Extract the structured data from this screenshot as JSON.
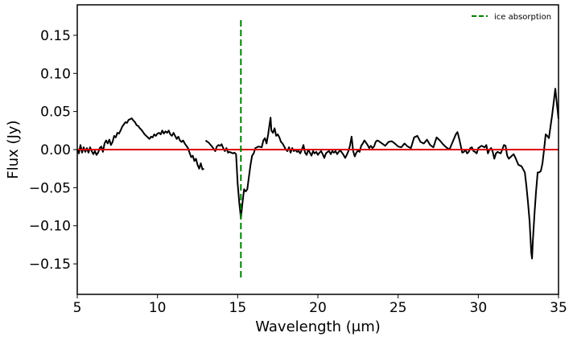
{
  "chart_data": {
    "type": "line",
    "title": "",
    "xlabel": "Wavelength (μm)",
    "ylabel": "Flux (Jy)",
    "xlim": [
      5,
      35
    ],
    "ylim": [
      -0.19,
      0.19
    ],
    "xticks": [
      5,
      10,
      15,
      20,
      25,
      30,
      35
    ],
    "xtick_labels": [
      "5",
      "10",
      "15",
      "20",
      "25",
      "30",
      "35"
    ],
    "yticks": [
      -0.15,
      -0.1,
      -0.05,
      0.0,
      0.05,
      0.1,
      0.15
    ],
    "ytick_labels": [
      "−0.15",
      "−0.10",
      "−0.05",
      "0.00",
      "0.05",
      "0.10",
      "0.15"
    ],
    "grid": false,
    "legend": {
      "position": "top-right",
      "entries": [
        {
          "label": "ice absorption",
          "color": "#008000",
          "style": "dashed"
        }
      ]
    },
    "series": [
      {
        "color": "#000000",
        "segments": [
          [
            [
              5.0,
              0.0
            ],
            [
              5.1,
              -0.005
            ],
            [
              5.2,
              0.006
            ],
            [
              5.3,
              -0.004
            ],
            [
              5.4,
              0.003
            ],
            [
              5.5,
              -0.003
            ],
            [
              5.6,
              0.002
            ],
            [
              5.7,
              -0.004
            ],
            [
              5.8,
              0.003
            ],
            [
              5.9,
              -0.002
            ],
            [
              6.0,
              -0.006
            ],
            [
              6.1,
              -0.002
            ],
            [
              6.2,
              -0.007
            ],
            [
              6.3,
              -0.004
            ],
            [
              6.4,
              0.002
            ],
            [
              6.5,
              0.004
            ],
            [
              6.6,
              -0.003
            ],
            [
              6.7,
              0.008
            ],
            [
              6.8,
              0.012
            ],
            [
              6.9,
              0.008
            ],
            [
              7.0,
              0.013
            ],
            [
              7.1,
              0.006
            ],
            [
              7.2,
              0.01
            ],
            [
              7.3,
              0.018
            ],
            [
              7.4,
              0.016
            ],
            [
              7.5,
              0.022
            ],
            [
              7.6,
              0.021
            ],
            [
              7.7,
              0.025
            ],
            [
              7.8,
              0.03
            ],
            [
              7.9,
              0.033
            ],
            [
              8.0,
              0.036
            ],
            [
              8.1,
              0.035
            ],
            [
              8.2,
              0.039
            ],
            [
              8.3,
              0.04
            ],
            [
              8.4,
              0.041
            ],
            [
              8.5,
              0.038
            ],
            [
              8.6,
              0.036
            ],
            [
              8.7,
              0.032
            ],
            [
              8.8,
              0.031
            ],
            [
              8.9,
              0.028
            ],
            [
              9.0,
              0.026
            ],
            [
              9.1,
              0.023
            ],
            [
              9.2,
              0.02
            ],
            [
              9.3,
              0.018
            ],
            [
              9.4,
              0.016
            ],
            [
              9.5,
              0.014
            ],
            [
              9.6,
              0.017
            ],
            [
              9.7,
              0.016
            ],
            [
              9.8,
              0.02
            ],
            [
              9.9,
              0.018
            ],
            [
              10.0,
              0.021
            ],
            [
              10.1,
              0.022
            ],
            [
              10.2,
              0.02
            ],
            [
              10.3,
              0.025
            ],
            [
              10.4,
              0.021
            ],
            [
              10.5,
              0.024
            ],
            [
              10.6,
              0.022
            ],
            [
              10.7,
              0.025
            ],
            [
              10.8,
              0.02
            ],
            [
              10.9,
              0.018
            ],
            [
              11.0,
              0.022
            ],
            [
              11.1,
              0.018
            ],
            [
              11.2,
              0.014
            ],
            [
              11.3,
              0.017
            ],
            [
              11.4,
              0.012
            ],
            [
              11.5,
              0.01
            ],
            [
              11.6,
              0.012
            ],
            [
              11.7,
              0.008
            ],
            [
              11.8,
              0.005
            ],
            [
              11.9,
              0.002
            ],
            [
              12.0,
              -0.004
            ],
            [
              12.1,
              -0.01
            ],
            [
              12.2,
              -0.008
            ],
            [
              12.3,
              -0.015
            ],
            [
              12.4,
              -0.012
            ],
            [
              12.5,
              -0.02
            ],
            [
              12.6,
              -0.025
            ],
            [
              12.7,
              -0.018
            ],
            [
              12.8,
              -0.026
            ],
            [
              12.9,
              -0.025
            ]
          ],
          [
            [
              13.0,
              0.012
            ],
            [
              13.2,
              0.009
            ],
            [
              13.4,
              0.004
            ],
            [
              13.6,
              -0.002
            ],
            [
              13.7,
              0.004
            ],
            [
              13.8,
              0.006
            ],
            [
              13.9,
              0.005
            ],
            [
              14.0,
              0.007
            ],
            [
              14.1,
              0.002
            ],
            [
              14.2,
              -0.002
            ],
            [
              14.3,
              0.002
            ],
            [
              14.4,
              -0.004
            ],
            [
              14.5,
              -0.003
            ],
            [
              14.6,
              -0.004
            ],
            [
              14.7,
              -0.005
            ],
            [
              14.8,
              -0.004
            ],
            [
              14.9,
              -0.006
            ],
            [
              15.0,
              -0.045
            ],
            [
              15.1,
              -0.07
            ],
            [
              15.2,
              -0.09
            ],
            [
              15.3,
              -0.07
            ],
            [
              15.4,
              -0.052
            ],
            [
              15.5,
              -0.055
            ],
            [
              15.6,
              -0.052
            ],
            [
              15.8,
              -0.02
            ],
            [
              15.9,
              -0.008
            ],
            [
              16.0,
              -0.005
            ],
            [
              16.1,
              0.002
            ],
            [
              16.3,
              0.004
            ],
            [
              16.5,
              0.003
            ],
            [
              16.6,
              0.012
            ],
            [
              16.7,
              0.015
            ],
            [
              16.8,
              0.008
            ],
            [
              16.9,
              0.02
            ],
            [
              17.0,
              0.035
            ],
            [
              17.05,
              0.042
            ],
            [
              17.1,
              0.025
            ],
            [
              17.2,
              0.022
            ],
            [
              17.3,
              0.028
            ],
            [
              17.4,
              0.018
            ],
            [
              17.5,
              0.02
            ],
            [
              17.6,
              0.016
            ],
            [
              17.7,
              0.01
            ],
            [
              17.8,
              0.008
            ],
            [
              17.9,
              0.004
            ],
            [
              18.0,
              0.0
            ],
            [
              18.1,
              -0.002
            ],
            [
              18.2,
              0.003
            ],
            [
              18.3,
              -0.004
            ],
            [
              18.4,
              0.002
            ],
            [
              18.5,
              -0.002
            ],
            [
              18.6,
              0.0
            ],
            [
              18.7,
              -0.003
            ],
            [
              18.8,
              -0.002
            ],
            [
              18.9,
              -0.005
            ],
            [
              19.0,
              0.0
            ],
            [
              19.1,
              0.006
            ],
            [
              19.2,
              -0.004
            ],
            [
              19.3,
              -0.007
            ],
            [
              19.4,
              0.0
            ],
            [
              19.5,
              -0.004
            ],
            [
              19.6,
              -0.008
            ],
            [
              19.7,
              -0.002
            ],
            [
              19.8,
              -0.005
            ],
            [
              19.9,
              -0.003
            ],
            [
              20.0,
              -0.007
            ],
            [
              20.1,
              -0.004
            ],
            [
              20.2,
              -0.002
            ],
            [
              20.3,
              -0.006
            ],
            [
              20.4,
              -0.011
            ],
            [
              20.5,
              -0.005
            ],
            [
              20.6,
              -0.003
            ],
            [
              20.7,
              -0.002
            ],
            [
              20.8,
              -0.006
            ],
            [
              20.9,
              -0.002
            ],
            [
              21.0,
              -0.004
            ],
            [
              21.1,
              -0.002
            ],
            [
              21.2,
              -0.006
            ],
            [
              21.3,
              -0.003
            ],
            [
              21.4,
              -0.001
            ],
            [
              21.5,
              -0.004
            ],
            [
              21.6,
              -0.007
            ],
            [
              21.7,
              -0.011
            ],
            [
              21.8,
              -0.007
            ],
            [
              21.9,
              -0.002
            ],
            [
              22.0,
              0.005
            ],
            [
              22.1,
              0.017
            ],
            [
              22.2,
              -0.002
            ],
            [
              22.3,
              -0.009
            ],
            [
              22.4,
              -0.004
            ],
            [
              22.5,
              -0.001
            ],
            [
              22.6,
              -0.003
            ],
            [
              22.7,
              0.005
            ],
            [
              22.8,
              0.008
            ],
            [
              22.9,
              0.012
            ],
            [
              23.0,
              0.009
            ],
            [
              23.1,
              0.006
            ],
            [
              23.2,
              0.002
            ],
            [
              23.3,
              0.005
            ],
            [
              23.4,
              0.002
            ],
            [
              23.5,
              0.004
            ],
            [
              23.6,
              0.01
            ],
            [
              23.7,
              0.012
            ],
            [
              23.8,
              0.011
            ],
            [
              24.0,
              0.008
            ],
            [
              24.2,
              0.005
            ],
            [
              24.4,
              0.01
            ],
            [
              24.6,
              0.011
            ],
            [
              24.8,
              0.008
            ],
            [
              25.0,
              0.004
            ],
            [
              25.2,
              0.003
            ],
            [
              25.4,
              0.008
            ],
            [
              25.6,
              0.004
            ],
            [
              25.8,
              0.002
            ],
            [
              26.0,
              0.016
            ],
            [
              26.2,
              0.018
            ],
            [
              26.4,
              0.01
            ],
            [
              26.6,
              0.008
            ],
            [
              26.8,
              0.013
            ],
            [
              27.0,
              0.006
            ],
            [
              27.2,
              0.003
            ],
            [
              27.4,
              0.016
            ],
            [
              27.6,
              0.012
            ],
            [
              27.8,
              0.007
            ],
            [
              28.0,
              0.003
            ],
            [
              28.2,
              0.0
            ],
            [
              28.4,
              0.01
            ],
            [
              28.6,
              0.02
            ],
            [
              28.7,
              0.023
            ],
            [
              28.8,
              0.015
            ],
            [
              29.0,
              -0.004
            ],
            [
              29.1,
              -0.003
            ],
            [
              29.2,
              0.0
            ],
            [
              29.3,
              -0.005
            ],
            [
              29.4,
              -0.003
            ],
            [
              29.5,
              0.002
            ],
            [
              29.6,
              0.003
            ],
            [
              29.7,
              -0.002
            ],
            [
              29.8,
              -0.003
            ],
            [
              29.9,
              -0.005
            ],
            [
              30.0,
              0.002
            ],
            [
              30.2,
              0.005
            ],
            [
              30.4,
              0.003
            ],
            [
              30.5,
              0.006
            ],
            [
              30.6,
              -0.005
            ],
            [
              30.7,
              0.0
            ],
            [
              30.8,
              0.002
            ],
            [
              30.9,
              -0.003
            ],
            [
              31.0,
              -0.012
            ],
            [
              31.1,
              -0.005
            ],
            [
              31.2,
              -0.003
            ],
            [
              31.4,
              -0.005
            ],
            [
              31.6,
              0.006
            ],
            [
              31.7,
              0.005
            ],
            [
              31.8,
              -0.008
            ],
            [
              31.9,
              -0.012
            ],
            [
              32.0,
              -0.01
            ],
            [
              32.2,
              -0.006
            ],
            [
              32.3,
              -0.01
            ],
            [
              32.4,
              -0.015
            ],
            [
              32.5,
              -0.02
            ],
            [
              32.7,
              -0.022
            ],
            [
              32.9,
              -0.03
            ],
            [
              33.0,
              -0.048
            ],
            [
              33.1,
              -0.07
            ],
            [
              33.2,
              -0.095
            ],
            [
              33.3,
              -0.135
            ],
            [
              33.35,
              -0.143
            ],
            [
              33.4,
              -0.12
            ],
            [
              33.5,
              -0.085
            ],
            [
              33.6,
              -0.055
            ],
            [
              33.7,
              -0.03
            ],
            [
              33.8,
              -0.03
            ],
            [
              33.9,
              -0.028
            ],
            [
              34.0,
              -0.018
            ],
            [
              34.1,
              0.0
            ],
            [
              34.2,
              0.02
            ],
            [
              34.3,
              0.018
            ],
            [
              34.4,
              0.015
            ],
            [
              34.5,
              0.03
            ],
            [
              34.6,
              0.045
            ],
            [
              34.7,
              0.062
            ],
            [
              34.8,
              0.08
            ],
            [
              34.9,
              0.06
            ],
            [
              35.0,
              0.04
            ]
          ]
        ]
      }
    ],
    "annotations": [
      {
        "type": "hline",
        "y": 0.0,
        "color": "#dd0000",
        "style": "solid"
      },
      {
        "type": "vline",
        "x": 15.2,
        "y_range": [
          -0.17,
          0.17
        ],
        "color": "#008000",
        "style": "dashed",
        "label": "ice absorption"
      }
    ]
  }
}
